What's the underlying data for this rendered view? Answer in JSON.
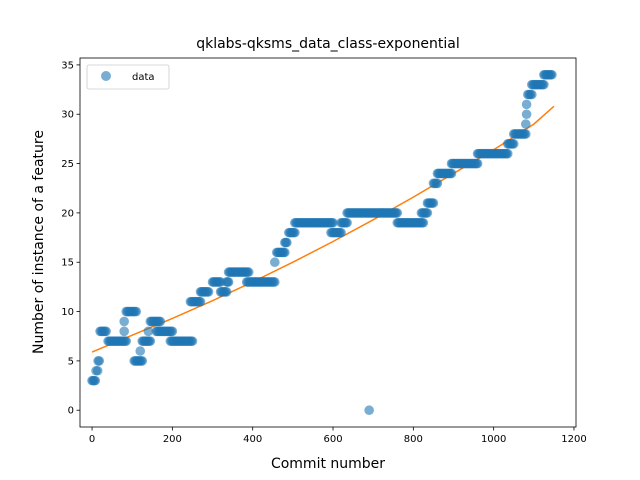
{
  "chart_data": {
    "type": "scatter",
    "title": "qklabs-qksms_data_class-exponential",
    "xlabel": "Commit number",
    "ylabel": "Number of instance of a feature",
    "xlim": [
      -30,
      1205
    ],
    "ylim": [
      -1.7,
      35.7
    ],
    "xticks": [
      0,
      200,
      400,
      600,
      800,
      1000,
      1200
    ],
    "yticks": [
      0,
      5,
      10,
      15,
      20,
      25,
      30,
      35
    ],
    "xtick_labels": [
      "0",
      "200",
      "400",
      "600",
      "800",
      "1000",
      "1200"
    ],
    "ytick_labels": [
      "0",
      "5",
      "10",
      "15",
      "20",
      "25",
      "30",
      "35"
    ],
    "legend": {
      "position": "top-left",
      "entries": [
        "data"
      ]
    },
    "colors": {
      "data": "#1f77b4",
      "fit": "#ff7f0e"
    },
    "series": [
      {
        "name": "data",
        "kind": "scatter",
        "segments": [
          [
            0,
            8,
            3
          ],
          [
            10,
            14,
            4
          ],
          [
            15,
            18,
            5
          ],
          [
            20,
            35,
            8
          ],
          [
            40,
            85,
            7
          ],
          [
            80,
            80,
            8
          ],
          [
            80,
            80,
            9
          ],
          [
            85,
            110,
            10
          ],
          [
            105,
            125,
            5
          ],
          [
            120,
            120,
            6
          ],
          [
            125,
            145,
            7
          ],
          [
            140,
            140,
            8
          ],
          [
            145,
            170,
            9
          ],
          [
            160,
            200,
            8
          ],
          [
            195,
            250,
            7
          ],
          [
            245,
            270,
            11
          ],
          [
            270,
            290,
            12
          ],
          [
            300,
            320,
            13
          ],
          [
            320,
            335,
            12
          ],
          [
            335,
            340,
            13
          ],
          [
            340,
            390,
            14
          ],
          [
            385,
            455,
            13
          ],
          [
            455,
            455,
            15
          ],
          [
            460,
            480,
            16
          ],
          [
            480,
            485,
            17
          ],
          [
            490,
            505,
            18
          ],
          [
            505,
            600,
            19
          ],
          [
            595,
            620,
            18
          ],
          [
            620,
            635,
            19
          ],
          [
            635,
            760,
            20
          ],
          [
            690,
            690,
            0
          ],
          [
            760,
            825,
            19
          ],
          [
            820,
            835,
            20
          ],
          [
            835,
            850,
            21
          ],
          [
            850,
            860,
            23
          ],
          [
            860,
            895,
            24
          ],
          [
            895,
            960,
            25
          ],
          [
            960,
            1035,
            26
          ],
          [
            1035,
            1050,
            27
          ],
          [
            1050,
            1080,
            28
          ],
          [
            1080,
            1080,
            29
          ],
          [
            1082,
            1082,
            30
          ],
          [
            1082,
            1082,
            31
          ],
          [
            1085,
            1095,
            32
          ],
          [
            1095,
            1125,
            33
          ],
          [
            1125,
            1145,
            34
          ]
        ]
      },
      {
        "name": "fit",
        "kind": "line",
        "x": [
          0,
          100,
          200,
          300,
          400,
          500,
          600,
          700,
          800,
          900,
          1000,
          1100,
          1150
        ],
        "y": [
          5.9,
          7.6,
          9.3,
          11.1,
          13.0,
          15.0,
          17.1,
          19.3,
          21.6,
          24.0,
          26.4,
          29.0,
          30.8
        ]
      }
    ]
  }
}
